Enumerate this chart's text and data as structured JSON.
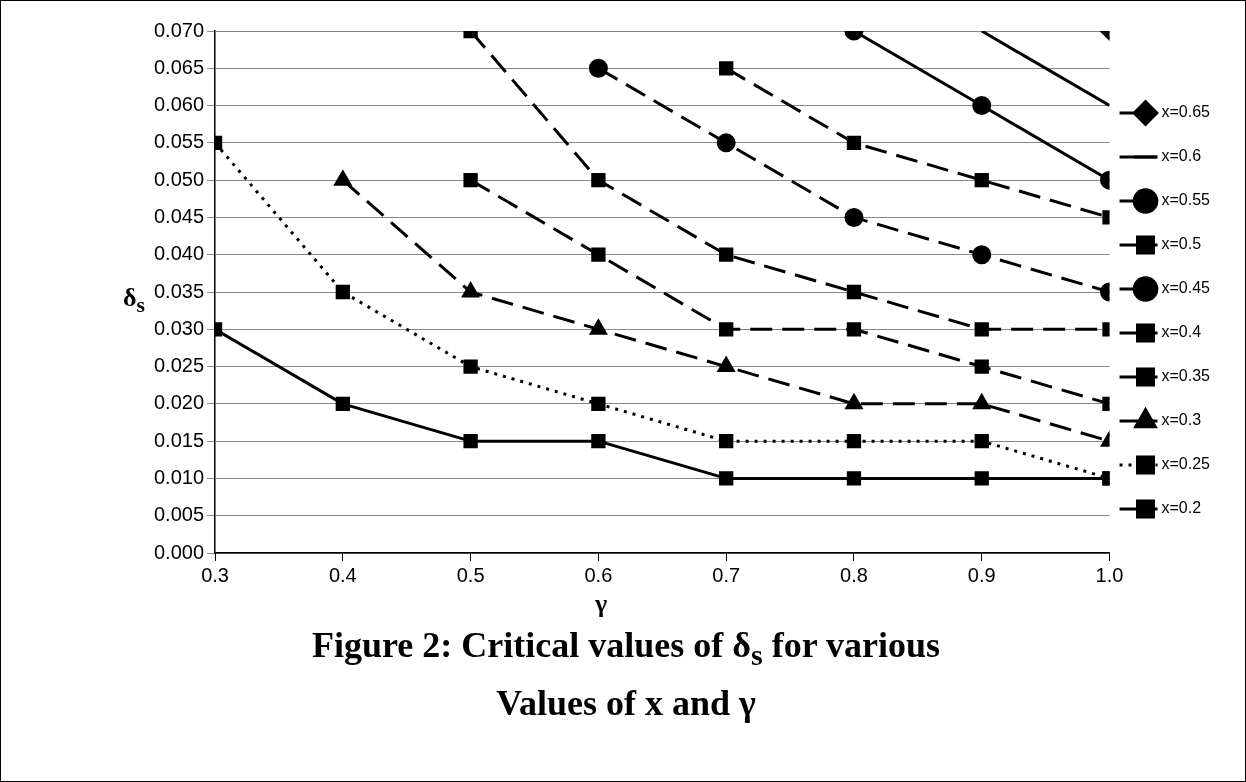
{
  "chart_data": {
    "type": "line",
    "title": "Figure 2: Critical values of δ$_{s}$ for various Values of x and γ",
    "xlabel": "γ",
    "ylabel": "δ$_{s}$",
    "x": [
      0.3,
      0.4,
      0.5,
      0.6,
      0.7,
      0.8,
      0.9,
      1.0
    ],
    "xlim": [
      0.3,
      1.0
    ],
    "xticks": [
      0.3,
      0.4,
      0.5,
      0.6,
      0.7,
      0.8,
      0.9,
      {
        "value": 1.0,
        "label": "1.0"
      }
    ],
    "ylim": [
      0,
      0.07
    ],
    "yticks": [
      {
        "value": 0,
        "label": "0.000"
      },
      {
        "value": 0.005,
        "label": "0.005"
      },
      {
        "value": 0.01,
        "label": "0.010"
      },
      {
        "value": 0.015,
        "label": "0.015"
      },
      {
        "value": 0.02,
        "label": "0.020"
      },
      {
        "value": 0.025,
        "label": "0.025"
      },
      {
        "value": 0.03,
        "label": "0.030"
      },
      {
        "value": 0.035,
        "label": "0.035"
      },
      {
        "value": 0.04,
        "label": "0.040"
      },
      {
        "value": 0.045,
        "label": "0.045"
      },
      {
        "value": 0.05,
        "label": "0.050"
      },
      {
        "value": 0.055,
        "label": "0.055"
      },
      {
        "value": 0.06,
        "label": "0.060"
      },
      {
        "value": 0.065,
        "label": "0.065"
      },
      {
        "value": 0.07,
        "label": "0.070"
      }
    ],
    "grid": "y",
    "legend": "right",
    "series": [
      {
        "name": "x=0.65",
        "color": "#000000",
        "marker": "diamond",
        "line_style": "solid",
        "values": [
          null,
          null,
          null,
          null,
          null,
          null,
          null,
          0.07
        ]
      },
      {
        "name": "x=0.6",
        "color": "#000000",
        "marker": "none",
        "line_style": "solid",
        "values": [
          null,
          null,
          null,
          null,
          null,
          null,
          0.07,
          0.06
        ]
      },
      {
        "name": "x=0.55",
        "color": "#000000",
        "marker": "circle",
        "line_style": "solid",
        "values": [
          null,
          null,
          null,
          null,
          null,
          0.07,
          0.06,
          0.05
        ]
      },
      {
        "name": "x=0.5",
        "color": "#000000",
        "marker": "square",
        "line_style": "dashed",
        "values": [
          null,
          null,
          null,
          null,
          0.065,
          0.055,
          0.05,
          0.045
        ]
      },
      {
        "name": "x=0.45",
        "color": "#000000",
        "marker": "circle",
        "line_style": "dashed",
        "values": [
          null,
          null,
          null,
          0.065,
          0.055,
          0.045,
          0.04,
          0.035
        ]
      },
      {
        "name": "x=0.4",
        "color": "#000000",
        "marker": "square",
        "line_style": "dashed",
        "values": [
          null,
          null,
          0.07,
          0.05,
          0.04,
          0.035,
          0.03,
          0.03
        ]
      },
      {
        "name": "x=0.35",
        "color": "#000000",
        "marker": "square",
        "line_style": "dashed",
        "values": [
          null,
          null,
          0.05,
          0.04,
          0.03,
          0.03,
          0.025,
          0.02
        ]
      },
      {
        "name": "x=0.3",
        "color": "#000000",
        "marker": "triangle",
        "line_style": "dashed",
        "values": [
          null,
          0.05,
          0.035,
          0.03,
          0.025,
          0.02,
          0.02,
          0.015
        ]
      },
      {
        "name": "x=0.25",
        "color": "#000000",
        "marker": "square",
        "line_style": "dotted",
        "values": [
          0.055,
          0.035,
          0.025,
          0.02,
          0.015,
          0.015,
          0.015,
          0.01
        ]
      },
      {
        "name": "x=0.2",
        "color": "#000000",
        "marker": "square",
        "line_style": "solid",
        "values": [
          0.03,
          0.02,
          0.015,
          0.015,
          0.01,
          0.01,
          0.01,
          0.01
        ]
      }
    ]
  }
}
